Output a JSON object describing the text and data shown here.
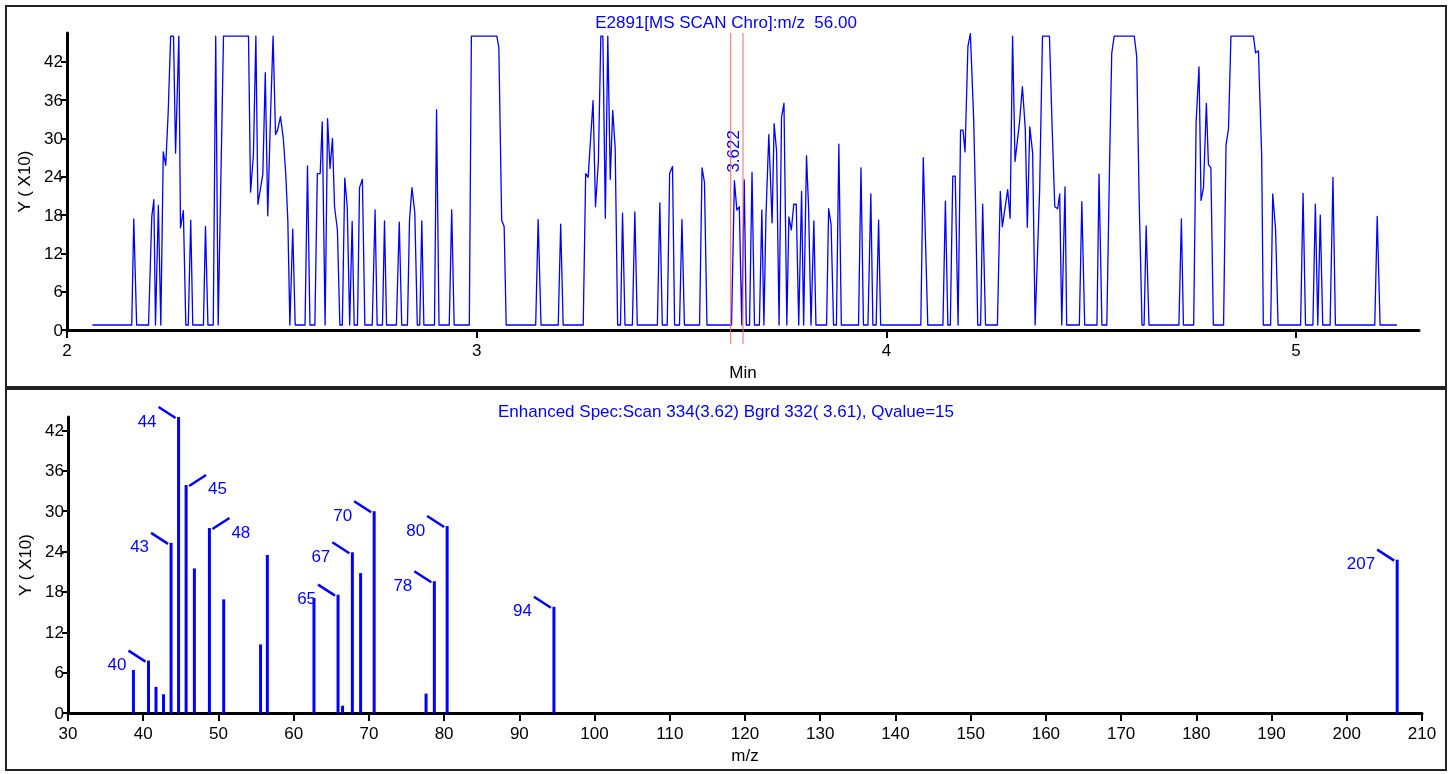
{
  "chart_data": [
    {
      "type": "line",
      "title": "E2891[MS SCAN Chro]:m/z  56.00",
      "xlabel": "Min",
      "ylabel": "Y ( X10)",
      "xlim": [
        2,
        5.3
      ],
      "xticks": [
        2,
        3,
        4,
        5
      ],
      "ylim": [
        0,
        46.5
      ],
      "yticks": [
        0,
        6,
        12,
        18,
        24,
        30,
        36,
        42
      ],
      "series": [
        {
          "color": "#0000ff",
          "x": [
            2.062,
            2.158,
            2.163,
            2.17,
            2.199,
            2.207,
            2.212,
            2.216,
            2.223,
            2.229,
            2.235,
            2.241,
            2.247,
            2.253,
            2.26,
            2.265,
            2.273,
            2.277,
            2.284,
            2.29,
            2.296,
            2.302,
            2.307,
            2.333,
            2.338,
            2.344,
            2.357,
            2.363,
            2.369,
            2.382,
            2.443,
            2.448,
            2.455,
            2.461,
            2.466,
            2.478,
            2.484,
            2.49,
            2.497,
            2.503,
            2.509,
            2.514,
            2.521,
            2.528,
            2.534,
            2.539,
            2.544,
            2.551,
            2.557,
            2.581,
            2.587,
            2.593,
            2.605,
            2.611,
            2.618,
            2.623,
            2.63,
            2.636,
            2.642,
            2.648,
            2.653,
            2.66,
            2.666,
            2.672,
            2.678,
            2.684,
            2.69,
            2.696,
            2.701,
            2.709,
            2.714,
            2.721,
            2.727,
            2.745,
            2.752,
            2.757,
            2.77,
            2.775,
            2.78,
            2.804,
            2.811,
            2.817,
            2.831,
            2.836,
            2.842,
            2.849,
            2.855,
            2.861,
            2.866,
            2.871,
            2.897,
            2.902,
            2.908,
            2.933,
            2.939,
            2.945,
            2.982,
            2.987,
            3.049,
            3.054,
            3.061,
            3.067,
            3.072,
            3.144,
            3.15,
            3.157,
            3.199,
            3.205,
            3.211,
            3.26,
            3.266,
            3.272,
            3.284,
            3.29,
            3.297,
            3.303,
            3.308,
            3.314,
            3.32,
            3.326,
            3.332,
            3.338,
            3.344,
            3.351,
            3.356,
            3.362,
            3.38,
            3.386,
            3.392,
            3.441,
            3.447,
            3.453,
            3.465,
            3.471,
            3.478,
            3.483,
            3.495,
            3.501,
            3.507,
            3.544,
            3.55,
            3.556,
            3.562,
            3.622,
            3.629,
            3.635,
            3.641,
            3.647,
            3.653,
            3.658,
            3.666,
            3.672,
            3.678,
            3.69,
            3.696,
            3.701,
            3.706,
            3.713,
            3.721,
            3.726,
            3.732,
            3.738,
            3.744,
            3.75,
            3.757,
            3.762,
            3.768,
            3.774,
            3.78,
            3.786,
            3.793,
            3.798,
            3.805,
            3.81,
            3.816,
            3.823,
            3.828,
            3.854,
            3.859,
            3.865,
            3.871,
            3.878,
            3.884,
            3.89,
            3.932,
            3.938,
            3.944,
            3.955,
            3.962,
            3.967,
            3.975,
            3.981,
            3.986,
            4.084,
            4.09,
            4.101,
            4.138,
            4.144,
            4.15,
            4.156,
            4.162,
            4.168,
            4.175,
            4.181,
            4.187,
            4.192,
            4.199,
            4.205,
            4.213,
            4.217,
            4.223,
            4.23,
            4.235,
            4.242,
            4.271,
            4.278,
            4.283,
            4.296,
            4.302,
            4.308,
            4.314,
            4.325,
            4.332,
            4.339,
            4.344,
            4.35,
            4.357,
            4.363,
            4.374,
            4.381,
            4.398,
            4.405,
            4.411,
            4.418,
            4.423,
            4.428,
            4.436,
            4.44,
            4.471,
            4.477,
            4.484,
            4.514,
            4.519,
            4.526,
            4.538,
            4.545,
            4.55,
            4.556,
            4.605,
            4.611,
            4.617,
            4.624,
            4.629,
            4.634,
            4.641,
            4.714,
            4.72,
            4.725,
            4.75,
            4.756,
            4.763,
            4.768,
            4.774,
            4.781,
            4.786,
            4.792,
            4.798,
            4.823,
            4.829,
            4.835,
            4.841,
            4.896,
            4.901,
            4.908,
            4.916,
            4.92,
            4.938,
            4.943,
            4.95,
            4.956,
            5.011,
            5.017,
            5.023,
            5.041,
            5.047,
            5.053,
            5.059,
            5.065,
            5.083,
            5.09,
            5.096,
            5.192,
            5.198,
            5.205,
            5.246
          ],
          "values": [
            0.8,
            0.8,
            17.4,
            0.8,
            0.8,
            17.8,
            20.4,
            0.8,
            19.5,
            0.8,
            27.9,
            25.8,
            34.1,
            46,
            46,
            27.7,
            46,
            16.0,
            18.7,
            0.8,
            0.8,
            17.2,
            0.8,
            0.8,
            16.2,
            0.8,
            0.8,
            46,
            0.8,
            46,
            46,
            21.6,
            27.4,
            46,
            19.7,
            24.4,
            40.3,
            17.9,
            34.1,
            46,
            30.6,
            31.3,
            33.4,
            30.0,
            24.4,
            17.2,
            0.8,
            15.8,
            0.8,
            0.8,
            25.7,
            0.8,
            0.8,
            24.5,
            24.5,
            32.6,
            0.8,
            33.1,
            25.3,
            30.0,
            19.3,
            15.7,
            0.8,
            0.8,
            23.8,
            19.3,
            0.8,
            17.0,
            0.8,
            0.8,
            22.3,
            23.6,
            0.8,
            0.8,
            18.8,
            0.8,
            0.8,
            17.1,
            0.8,
            0.8,
            16.9,
            0.8,
            0.8,
            17.2,
            22.3,
            18.3,
            0.8,
            0.8,
            17.1,
            0.8,
            0.8,
            34.5,
            0.8,
            0.8,
            18.8,
            0.8,
            0.8,
            46,
            46,
            44.3,
            17.2,
            16.2,
            0.8,
            0.8,
            17.3,
            0.8,
            0.8,
            16.6,
            0.8,
            0.8,
            24.5,
            23.9,
            35.9,
            19.3,
            26.4,
            46,
            46,
            17.5,
            46,
            23.6,
            34.4,
            28.5,
            0.8,
            0.8,
            18.3,
            0.8,
            0.8,
            18.5,
            0.8,
            0.8,
            19.9,
            0.8,
            0.8,
            24.5,
            25.6,
            0.8,
            0.8,
            17.3,
            0.8,
            0.8,
            25.4,
            23.1,
            0.8,
            0.8,
            23.4,
            18.8,
            19.3,
            0.8,
            23.5,
            0.8,
            0.8,
            24.7,
            0.8,
            0.8,
            18.8,
            0.8,
            17.8,
            30.6,
            16.8,
            32.3,
            28.0,
            0.8,
            33.3,
            35.5,
            0.8,
            17.7,
            15.7,
            19.7,
            19.7,
            0.8,
            21.7,
            0.8,
            27.3,
            19.3,
            0.8,
            17.1,
            0.8,
            0.8,
            19.0,
            16.5,
            0.8,
            0.8,
            29.1,
            0.8,
            0.8,
            25.4,
            0.8,
            0.8,
            21.3,
            0.8,
            0.8,
            17.2,
            0.8,
            0.8,
            27.0,
            0.8,
            0.8,
            20.2,
            0.8,
            0.8,
            24.1,
            24.1,
            0.8,
            31.3,
            31.3,
            27.9,
            44.4,
            46.4,
            33.1,
            21.8,
            0.8,
            0.8,
            19.7,
            0.8,
            0.8,
            21.7,
            16.2,
            22.0,
            17.5,
            46,
            26.4,
            32.6,
            38.1,
            31.5,
            16.1,
            31.8,
            27.7,
            0.8,
            21.8,
            46,
            46,
            30.8,
            19.3,
            19.0,
            21.3,
            0.8,
            22.4,
            0.8,
            0.8,
            20.1,
            0.8,
            0.8,
            24.4,
            0.8,
            0.8,
            26.9,
            43.3,
            46,
            46,
            42.8,
            20.3,
            0.8,
            0.8,
            16.3,
            0.8,
            0.8,
            17.4,
            0.8,
            0.8,
            32.6,
            41.2,
            20.3,
            22.3,
            35.5,
            25.9,
            25.4,
            0.8,
            0.8,
            29.0,
            31.5,
            46,
            46,
            43.4,
            43.7,
            27.4,
            0.8,
            0.8,
            21.3,
            15.7,
            0.8,
            0.8,
            21.4,
            0.8,
            0.8,
            19.7,
            0.8,
            18.0,
            0.8,
            0.8,
            23.9,
            0.8,
            0.8,
            17.8,
            0.8,
            0.8
          ]
        }
      ],
      "annotations": [
        {
          "text": "3.622",
          "x": 3.622,
          "y": 23.4
        }
      ],
      "ref_lines": [
        {
          "axis": "x",
          "value": 3.62,
          "color": "#ff6666"
        },
        {
          "axis": "x",
          "value": 3.65,
          "color": "#ff6666"
        }
      ]
    },
    {
      "type": "bar",
      "title": "Enhanced Spec:Scan 334(3.62) Bgrd 332( 3.61), Qvalue=15",
      "xlabel": "m/z",
      "ylabel": "Y ( X10)",
      "xlim": [
        30,
        210
      ],
      "xticks": [
        30,
        40,
        50,
        60,
        70,
        80,
        90,
        100,
        110,
        120,
        130,
        140,
        150,
        160,
        170,
        180,
        190,
        200,
        210
      ],
      "ylim": [
        0,
        44
      ],
      "yticks": [
        0,
        6,
        12,
        18,
        24,
        30,
        36,
        42
      ],
      "series": [
        {
          "color": "#0000ff",
          "x": [
            38.7,
            40.7,
            41.7,
            42.7,
            43.7,
            44.7,
            45.7,
            46.8,
            48.8,
            50.7,
            55.6,
            56.5,
            62.7,
            65.9,
            66.5,
            67.8,
            68.9,
            70.7,
            77.6,
            78.7,
            80.4,
            94.6,
            206.7
          ],
          "values": [
            6.4,
            7.8,
            3.9,
            2.8,
            25.3,
            44.0,
            33.9,
            21.5,
            27.5,
            16.9,
            10.2,
            23.5,
            17.1,
            17.6,
            1.1,
            23.9,
            20.8,
            30.0,
            2.9,
            19.6,
            27.8,
            15.8,
            22.8
          ]
        }
      ],
      "annotations": [
        {
          "text": "40",
          "x": 40.7,
          "y": 7.8
        },
        {
          "text": "43",
          "x": 43.7,
          "y": 25.3
        },
        {
          "text": "44",
          "x": 44.7,
          "y": 44.0
        },
        {
          "text": "45",
          "x": 45.7,
          "y": 33.9
        },
        {
          "text": "48",
          "x": 48.8,
          "y": 27.5
        },
        {
          "text": "65",
          "x": 65.9,
          "y": 17.6
        },
        {
          "text": "67",
          "x": 67.8,
          "y": 23.9
        },
        {
          "text": "70",
          "x": 70.7,
          "y": 30.0
        },
        {
          "text": "78",
          "x": 78.7,
          "y": 19.6
        },
        {
          "text": "80",
          "x": 80.4,
          "y": 27.8
        },
        {
          "text": "94",
          "x": 94.6,
          "y": 15.8
        },
        {
          "text": "207",
          "x": 206.7,
          "y": 22.8
        }
      ]
    }
  ]
}
